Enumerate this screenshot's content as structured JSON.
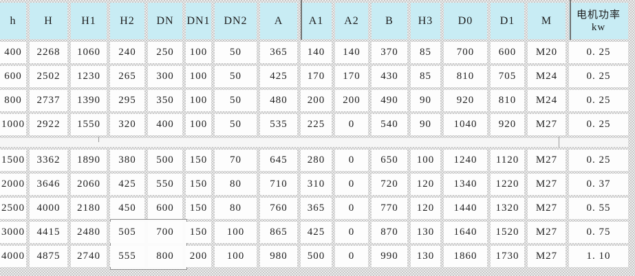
{
  "colors": {
    "header_bg": "#c8ecf4",
    "cell_bg": "#fdfdfd",
    "gridline_gray": "#c9c9c9",
    "divider_dark": "#6f6f6f",
    "text": "#1f1f1f"
  },
  "table": {
    "columns": [
      {
        "key": "h",
        "label": "h"
      },
      {
        "key": "H",
        "label": "H"
      },
      {
        "key": "H1",
        "label": "H1"
      },
      {
        "key": "H2",
        "label": "H2"
      },
      {
        "key": "DN",
        "label": "DN"
      },
      {
        "key": "DN1",
        "label": "DN1"
      },
      {
        "key": "DN2",
        "label": "DN2"
      },
      {
        "key": "A",
        "label": "A"
      },
      {
        "key": "A1",
        "label": "A1"
      },
      {
        "key": "A2",
        "label": "A2"
      },
      {
        "key": "B",
        "label": "B"
      },
      {
        "key": "H3",
        "label": "H3"
      },
      {
        "key": "D0",
        "label": "D0"
      },
      {
        "key": "D1",
        "label": "D1"
      },
      {
        "key": "M",
        "label": "M"
      },
      {
        "key": "motor-power-kw",
        "label": "电机功率",
        "sublabel": "kw"
      }
    ],
    "sections": [
      {
        "name": "upper",
        "rows": [
          [
            "400",
            "2268",
            "1060",
            "240",
            "250",
            "100",
            "50",
            "365",
            "140",
            "140",
            "370",
            "85",
            "700",
            "600",
            "M20",
            "0. 25"
          ],
          [
            "600",
            "2502",
            "1230",
            "265",
            "300",
            "100",
            "50",
            "425",
            "170",
            "170",
            "430",
            "85",
            "810",
            "705",
            "M24",
            "0. 25"
          ],
          [
            "800",
            "2737",
            "1390",
            "295",
            "350",
            "100",
            "50",
            "480",
            "200",
            "200",
            "490",
            "90",
            "920",
            "810",
            "M24",
            "0. 25"
          ],
          [
            "1000",
            "2922",
            "1550",
            "320",
            "400",
            "100",
            "50",
            "535",
            "225",
            "0",
            "540",
            "90",
            "1040",
            "920",
            "M27",
            "0. 25"
          ]
        ]
      },
      {
        "name": "lower",
        "rows": [
          [
            "1500",
            "3362",
            "1890",
            "380",
            "500",
            "150",
            "70",
            "645",
            "280",
            "0",
            "650",
            "100",
            "1240",
            "1120",
            "M27",
            "0. 25"
          ],
          [
            "2000",
            "3646",
            "2060",
            "425",
            "550",
            "150",
            "80",
            "710",
            "310",
            "0",
            "720",
            "120",
            "1340",
            "1220",
            "M27",
            "0. 37"
          ],
          [
            "2500",
            "4000",
            "2180",
            "450",
            "600",
            "150",
            "80",
            "760",
            "365",
            "0",
            "770",
            "120",
            "1440",
            "1320",
            "M27",
            "0. 55"
          ],
          [
            "3000",
            "4415",
            "2480",
            "505",
            "700",
            "150",
            "100",
            "865",
            "425",
            "0",
            "870",
            "130",
            "1640",
            "1520",
            "M27",
            "0. 75"
          ],
          [
            "4000",
            "4875",
            "2740",
            "555",
            "800",
            "200",
            "100",
            "980",
            "500",
            "0",
            "990",
            "130",
            "1860",
            "1730",
            "M27",
            "1. 10"
          ]
        ]
      }
    ]
  }
}
